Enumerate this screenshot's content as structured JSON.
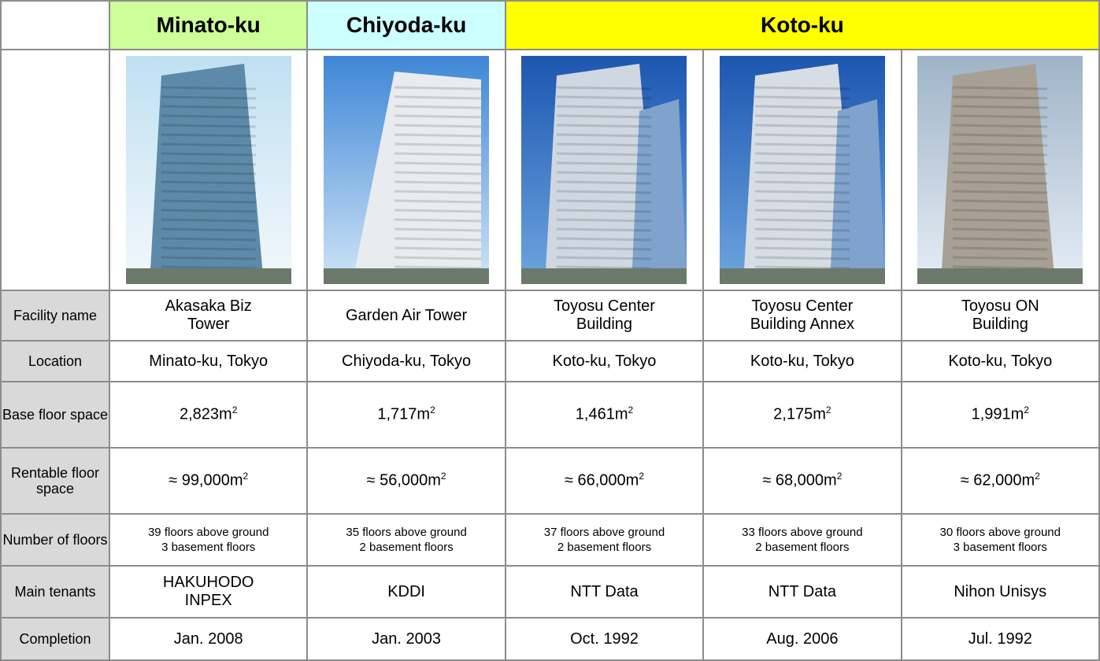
{
  "header": {
    "districts": [
      "Minato-ku",
      "Chiyoda-ku",
      "Koto-ku"
    ]
  },
  "rows": [
    {
      "label": "Facility name",
      "cells": [
        [
          "Akasaka Biz",
          "Tower"
        ],
        [
          "Garden Air Tower"
        ],
        [
          "Toyosu Center",
          "Building"
        ],
        [
          "Toyosu Center",
          "Building Annex"
        ],
        [
          "Toyosu ON",
          "Building"
        ]
      ]
    },
    {
      "label": "Location",
      "cells": [
        [
          "Minato-ku, Tokyo"
        ],
        [
          "Chiyoda-ku, Tokyo"
        ],
        [
          "Koto-ku, Tokyo"
        ],
        [
          "Koto-ku, Tokyo"
        ],
        [
          "Koto-ku, Tokyo"
        ]
      ]
    },
    {
      "label": "Base floor space",
      "cells": [
        {
          "text": "2,823m",
          "sup": "2"
        },
        {
          "text": "1,717m",
          "sup": "2"
        },
        {
          "text": "1,461m",
          "sup": "2"
        },
        {
          "text": "2,175m",
          "sup": "2"
        },
        {
          "text": "1,991m",
          "sup": "2"
        }
      ]
    },
    {
      "label": "Rentable floor space",
      "cells": [
        {
          "text": "≈  99,000m",
          "sup": "2"
        },
        {
          "text": "≈  56,000m",
          "sup": "2"
        },
        {
          "text": "≈  66,000m",
          "sup": "2"
        },
        {
          "text": "≈  68,000m",
          "sup": "2"
        },
        {
          "text": "≈  62,000m",
          "sup": "2"
        }
      ]
    },
    {
      "label": "Number of floors",
      "cells": [
        [
          "39 floors above ground",
          "3 basement floors"
        ],
        [
          "35 floors above ground",
          "2 basement floors"
        ],
        [
          "37 floors above ground",
          "2 basement floors"
        ],
        [
          "33 floors above ground",
          "2 basement floors"
        ],
        [
          "30 floors above ground",
          "3 basement floors"
        ]
      ]
    },
    {
      "label": "Main tenants",
      "cells": [
        [
          "HAKUHODO",
          "INPEX"
        ],
        [
          "KDDI"
        ],
        [
          "NTT Data"
        ],
        [
          "NTT Data"
        ],
        [
          "Nihon Unisys"
        ]
      ]
    },
    {
      "label": "Completion",
      "cells": [
        [
          "Jan. 2008"
        ],
        [
          "Jan. 2003"
        ],
        [
          "Oct. 1992"
        ],
        [
          "Aug. 2006"
        ],
        [
          "Jul. 1992"
        ]
      ]
    }
  ]
}
